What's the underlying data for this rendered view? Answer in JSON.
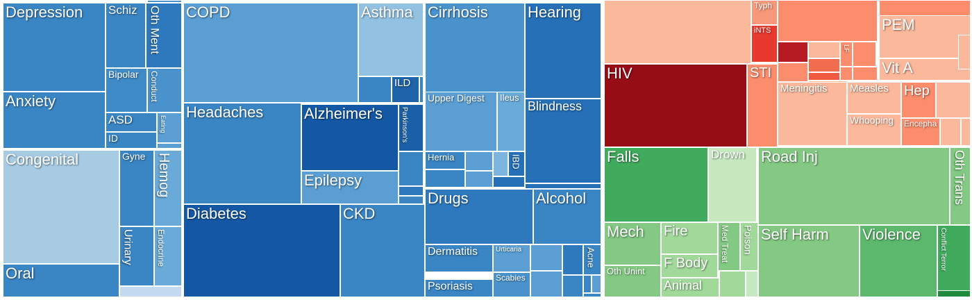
{
  "chart_data": {
    "type": "treemap",
    "title": "",
    "groups": [
      {
        "color": "blue"
      },
      {
        "color": "red"
      },
      {
        "color": "green"
      }
    ],
    "cells": [
      {
        "label": "Depression",
        "color": "#3a85c4"
      },
      {
        "label": "Schiz",
        "color": "#3a85c4"
      },
      {
        "label": "Oth Ment",
        "color": "#2e79bd"
      },
      {
        "label": "",
        "color": "#4a92cc"
      },
      {
        "label": "Anxiety",
        "color": "#3a85c4"
      },
      {
        "label": "Bipolar",
        "color": "#3f8bc8"
      },
      {
        "label": "Conduct",
        "color": "#4a92cc"
      },
      {
        "label": "ASD",
        "color": "#3a85c4"
      },
      {
        "label": "Eating",
        "color": "#5a9ed3"
      },
      {
        "label": "ID",
        "color": "#3a85c4"
      },
      {
        "label": "",
        "color": "#5a9ed3"
      },
      {
        "label": "Congenital",
        "color": "#a6cbe3"
      },
      {
        "label": "Gyne",
        "color": "#3a85c4"
      },
      {
        "label": "Hemog",
        "color": "#6aaad8"
      },
      {
        "label": "Urinary",
        "color": "#3a85c4"
      },
      {
        "label": "Endocrine",
        "color": "#6aaad8"
      },
      {
        "label": "Oral",
        "color": "#3a85c4"
      },
      {
        "label": "",
        "color": "#c4daf0"
      },
      {
        "label": "COPD",
        "color": "#5a9ed3"
      },
      {
        "label": "Asthma",
        "color": "#93c1e2"
      },
      {
        "label": "",
        "color": "#3a85c4"
      },
      {
        "label": "ILD",
        "color": "#1f63ab"
      },
      {
        "label": "",
        "color": "#3a85c4"
      },
      {
        "label": "Headaches",
        "color": "#3a85c4"
      },
      {
        "label": "Alzheimer's",
        "color": "#1458a5"
      },
      {
        "label": "Parkinson's",
        "color": "#1a60a8"
      },
      {
        "label": "Epilepsy",
        "color": "#5a9ed3"
      },
      {
        "label": "",
        "color": "#3a85c4"
      },
      {
        "label": "",
        "color": "#2e79bd"
      },
      {
        "label": "",
        "color": "#3a85c4"
      },
      {
        "label": "Diabetes",
        "color": "#1458a5"
      },
      {
        "label": "CKD",
        "color": "#3a85c4"
      },
      {
        "label": "Cirrhosis",
        "color": "#4a92cc"
      },
      {
        "label": "Hearing",
        "color": "#2670b8"
      },
      {
        "label": "Upper Digest",
        "color": "#5a9ed3"
      },
      {
        "label": "Ileus",
        "color": "#6aaad8"
      },
      {
        "label": "Blindness",
        "color": "#2670b8"
      },
      {
        "label": "Hernia",
        "color": "#3a85c4"
      },
      {
        "label": "",
        "color": "#5a9ed3"
      },
      {
        "label": "",
        "color": "#7db5df"
      },
      {
        "label": "IBD",
        "color": "#2670b8"
      },
      {
        "label": "",
        "color": "#3a85c4"
      },
      {
        "label": "",
        "color": "#5a9ed3"
      },
      {
        "label": "",
        "color": "#2670b8"
      },
      {
        "label": "",
        "color": "#2670b8"
      },
      {
        "label": "Drugs",
        "color": "#2e79bd"
      },
      {
        "label": "Alcohol",
        "color": "#3a85c4"
      },
      {
        "label": "Dermatitis",
        "color": "#3a85c4"
      },
      {
        "label": "Urticaria",
        "color": "#5a9ed3"
      },
      {
        "label": "",
        "color": "#5a9ed3"
      },
      {
        "label": "",
        "color": "#2e79bd"
      },
      {
        "label": "Acne",
        "color": "#3a85c4"
      },
      {
        "label": "Scabies",
        "color": "#4a92cc"
      },
      {
        "label": "",
        "color": "#5a9ed3"
      },
      {
        "label": "Psoriasis",
        "color": "#3a85c4"
      },
      {
        "label": "",
        "color": "#3a85c4"
      },
      {
        "label": "",
        "color": "#3a85c4"
      },
      {
        "label": "",
        "color": "#5a9ed3"
      },
      {
        "label": "",
        "color": "#3a85c4"
      },
      {
        "label": "",
        "color": "#fcb89a"
      },
      {
        "label": "Typh",
        "color": "#f7987a"
      },
      {
        "label": "iNTS",
        "color": "#e8392f"
      },
      {
        "label": "",
        "color": "#fb8c6c"
      },
      {
        "label": "",
        "color": "#b61a22"
      },
      {
        "label": "",
        "color": "#fcb89a"
      },
      {
        "label": "",
        "color": "#f26d50"
      },
      {
        "label": "LF",
        "color": "#fb8c6c"
      },
      {
        "label": "",
        "color": "#fb8c6c"
      },
      {
        "label": "",
        "color": "#f05a42"
      },
      {
        "label": "",
        "color": "#fb8c6c"
      },
      {
        "label": "",
        "color": "#fb8c6c"
      },
      {
        "label": "",
        "color": "#fb8c6c"
      },
      {
        "label": "PEM",
        "color": "#fcb89a"
      },
      {
        "label": "Vit A",
        "color": "#fcb89a"
      },
      {
        "label": "",
        "color": "#fcb89a"
      },
      {
        "label": "HIV",
        "color": "#960d16"
      },
      {
        "label": "STI",
        "color": "#fb8c6c"
      },
      {
        "label": "",
        "color": "#fb8c6c"
      },
      {
        "label": "",
        "color": "#fcb89a"
      },
      {
        "label": "Meningitis",
        "color": "#fcb89a"
      },
      {
        "label": "Measles",
        "color": "#fcb89a"
      },
      {
        "label": "Hep",
        "color": "#fb8c6c"
      },
      {
        "label": "",
        "color": "#fcb89a"
      },
      {
        "label": "Whooping",
        "color": "#fcb89a"
      },
      {
        "label": "Encepha",
        "color": "#fb8c6c"
      },
      {
        "label": "",
        "color": "#fcb89a"
      },
      {
        "label": "",
        "color": "#fcb89a"
      },
      {
        "label": "Falls",
        "color": "#41ab5d"
      },
      {
        "label": "Drown",
        "color": "#c7e9c0"
      },
      {
        "label": "Road Inj",
        "color": "#83c883"
      },
      {
        "label": "Oth Trans",
        "color": "#83c883"
      },
      {
        "label": "Mech",
        "color": "#83c883"
      },
      {
        "label": "Oth Unint",
        "color": "#83c883"
      },
      {
        "label": "Fire",
        "color": "#a1d99b"
      },
      {
        "label": "F Body",
        "color": "#a1d99b"
      },
      {
        "label": "Animal",
        "color": "#a1d99b"
      },
      {
        "label": "Med Treat",
        "color": "#83c883"
      },
      {
        "label": "Poison",
        "color": "#a1d99b"
      },
      {
        "label": "",
        "color": "#a1d99b"
      },
      {
        "label": "",
        "color": "#c7e9c0"
      },
      {
        "label": "Self Harm",
        "color": "#83c883"
      },
      {
        "label": "Violence",
        "color": "#5cb86c"
      },
      {
        "label": "Conflict Terror",
        "color": "#41ab5d"
      },
      {
        "label": "",
        "color": "#1e8a3c"
      }
    ]
  }
}
